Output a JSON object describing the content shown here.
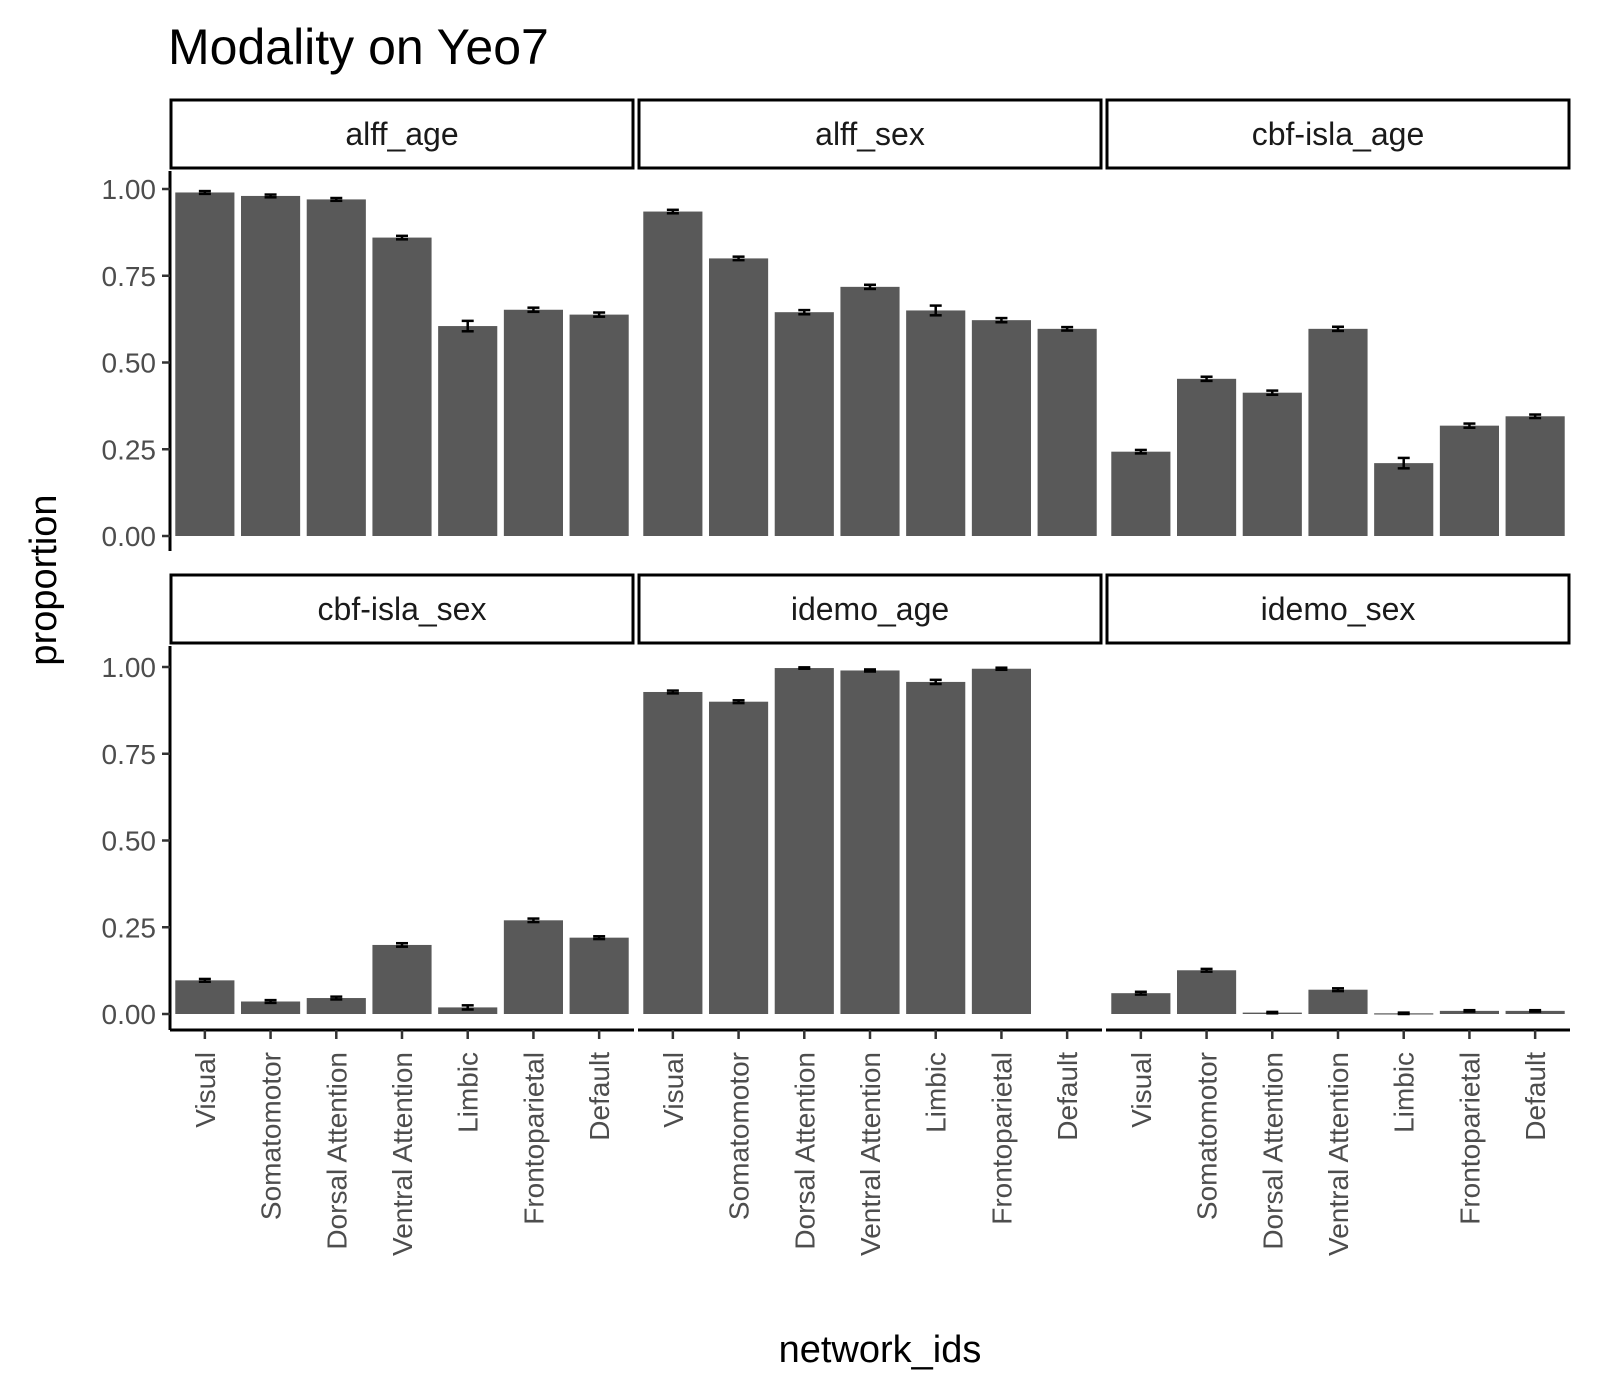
{
  "chart_data": {
    "type": "bar",
    "title": "Modality on Yeo7",
    "xlabel": "network_ids",
    "ylabel": "proportion",
    "ylim": [
      0,
      1
    ],
    "yticks": [
      "0.00",
      "0.25",
      "0.50",
      "0.75",
      "1.00"
    ],
    "categories": [
      "Visual",
      "Somatomotor",
      "Dorsal Attention",
      "Ventral Attention",
      "Limbic",
      "Frontoparietal",
      "Default"
    ],
    "bar_color": "#595959",
    "errorbar_color": "#000000",
    "grid": false,
    "legend": "none",
    "facets": [
      {
        "name": "alff_age",
        "values": [
          0.99,
          0.98,
          0.97,
          0.86,
          0.605,
          0.652,
          0.638
        ],
        "errors": [
          0.004,
          0.004,
          0.004,
          0.005,
          0.015,
          0.006,
          0.006
        ]
      },
      {
        "name": "alff_sex",
        "values": [
          0.935,
          0.8,
          0.645,
          0.718,
          0.65,
          0.622,
          0.597
        ],
        "errors": [
          0.005,
          0.005,
          0.006,
          0.006,
          0.014,
          0.006,
          0.005
        ]
      },
      {
        "name": "cbf-isla_age",
        "values": [
          0.243,
          0.453,
          0.413,
          0.597,
          0.21,
          0.318,
          0.345
        ],
        "errors": [
          0.005,
          0.006,
          0.006,
          0.006,
          0.015,
          0.006,
          0.005
        ]
      },
      {
        "name": "cbf-isla_sex",
        "values": [
          0.097,
          0.036,
          0.046,
          0.199,
          0.019,
          0.27,
          0.22
        ],
        "errors": [
          0.004,
          0.004,
          0.004,
          0.005,
          0.006,
          0.005,
          0.004
        ]
      },
      {
        "name": "idemo_age",
        "values": [
          0.928,
          0.9,
          0.997,
          0.99,
          0.957,
          0.995,
          null
        ],
        "errors": [
          0.004,
          0.004,
          0.002,
          0.003,
          0.006,
          0.003,
          null
        ]
      },
      {
        "name": "idemo_sex",
        "values": [
          0.06,
          0.126,
          0.004,
          0.07,
          0.002,
          0.009,
          0.009
        ],
        "errors": [
          0.004,
          0.004,
          0.002,
          0.004,
          0.002,
          0.002,
          0.002
        ]
      }
    ]
  }
}
